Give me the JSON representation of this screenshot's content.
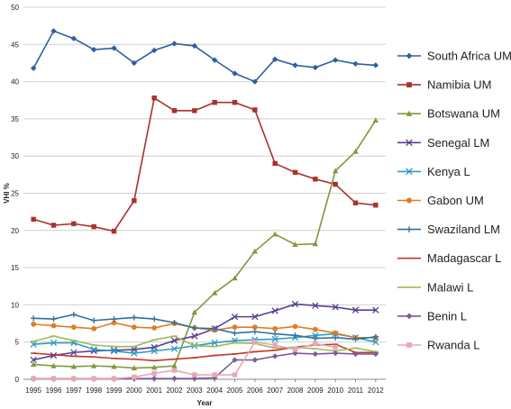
{
  "chart_data": {
    "type": "line",
    "title": "",
    "xlabel": "Year",
    "ylabel": "VHI %",
    "ylim": [
      0,
      50
    ],
    "yticks": [
      0,
      5,
      10,
      15,
      20,
      25,
      30,
      35,
      40,
      45,
      50
    ],
    "grid": "horizontal",
    "legend_position": "right",
    "categories": [
      "1995",
      "1996",
      "1997",
      "1998",
      "1999",
      "2000",
      "2001",
      "2002",
      "2003",
      "2004",
      "2005",
      "2006",
      "2007",
      "2008",
      "2009",
      "2010",
      "2011",
      "2012"
    ],
    "series": [
      {
        "name": "South Africa UM",
        "color": "#2E5F9E",
        "marker": "diamond",
        "values": [
          41.8,
          46.8,
          45.8,
          44.3,
          44.5,
          42.5,
          44.2,
          45.1,
          44.8,
          42.9,
          41.1,
          40.0,
          43.0,
          42.2,
          41.9,
          42.9,
          42.4,
          42.2
        ]
      },
      {
        "name": "Namibia UM",
        "color": "#A8322D",
        "marker": "square",
        "values": [
          21.5,
          20.7,
          20.9,
          20.5,
          19.9,
          24.0,
          37.8,
          36.1,
          36.1,
          37.2,
          37.2,
          36.2,
          29.0,
          27.8,
          26.9,
          26.2,
          23.7,
          23.4
        ]
      },
      {
        "name": "Botswana UM",
        "color": "#7E9A3A",
        "marker": "triangle",
        "values": [
          2.0,
          1.8,
          1.7,
          1.8,
          1.7,
          1.5,
          1.6,
          1.8,
          9.0,
          11.6,
          13.6,
          17.2,
          19.5,
          18.1,
          18.2,
          28.0,
          30.6,
          34.8
        ]
      },
      {
        "name": "Senegal LM",
        "color": "#5B3F8E",
        "marker": "x",
        "values": [
          2.6,
          3.2,
          3.6,
          3.8,
          3.9,
          4.0,
          4.3,
          5.2,
          5.8,
          6.8,
          8.4,
          8.4,
          9.2,
          10.1,
          9.9,
          9.7,
          9.3,
          9.3
        ]
      },
      {
        "name": "Kenya L",
        "color": "#2E9CC0",
        "marker": "x",
        "values": [
          4.7,
          4.9,
          4.9,
          4.0,
          3.8,
          3.5,
          3.8,
          4.1,
          4.5,
          4.9,
          5.2,
          5.3,
          5.4,
          5.6,
          5.9,
          6.1,
          5.6,
          5.0
        ]
      },
      {
        "name": "Gabon UM",
        "color": "#E07D25",
        "marker": "circle",
        "values": [
          7.4,
          7.2,
          7.0,
          6.8,
          7.6,
          7.0,
          6.9,
          7.5,
          6.9,
          6.6,
          7.0,
          7.0,
          6.8,
          7.1,
          6.7,
          6.2,
          5.6,
          5.6
        ]
      },
      {
        "name": "Swaziland LM",
        "color": "#2E6F9E",
        "marker": "plus",
        "values": [
          8.2,
          8.1,
          8.7,
          7.9,
          8.1,
          8.3,
          8.1,
          7.6,
          6.9,
          6.8,
          6.2,
          6.4,
          6.1,
          5.9,
          5.5,
          5.6,
          5.4,
          5.7
        ]
      },
      {
        "name": "Madagascar L",
        "color": "#C0392B",
        "marker": "dash",
        "values": [
          3.5,
          3.3,
          3.1,
          3.0,
          2.8,
          2.7,
          2.5,
          2.7,
          2.9,
          3.2,
          3.4,
          3.7,
          3.9,
          4.3,
          4.6,
          4.7,
          3.6,
          3.6
        ]
      },
      {
        "name": "Malawi L",
        "color": "#9BBB59",
        "marker": "dash",
        "values": [
          5.1,
          5.8,
          5.2,
          4.6,
          4.4,
          4.4,
          5.3,
          5.8,
          4.5,
          4.4,
          4.9,
          4.8,
          4.2,
          4.3,
          4.1,
          3.8,
          4.2,
          3.7
        ]
      },
      {
        "name": "Benin L",
        "color": "#7E5A9E",
        "marker": "diamond",
        "values": [
          0.1,
          0.1,
          0.1,
          0.1,
          0.1,
          0.1,
          0.1,
          0.1,
          0.1,
          0.2,
          2.6,
          2.6,
          3.1,
          3.5,
          3.4,
          3.5,
          3.4,
          3.4
        ]
      },
      {
        "name": "Rwanda L",
        "color": "#E8A7B5",
        "marker": "square",
        "values": [
          0.1,
          0.1,
          0.1,
          0.1,
          0.1,
          0.3,
          0.8,
          1.2,
          0.6,
          0.6,
          0.6,
          5.0,
          4.6,
          4.0,
          4.8,
          4.3,
          null,
          null
        ]
      }
    ]
  }
}
